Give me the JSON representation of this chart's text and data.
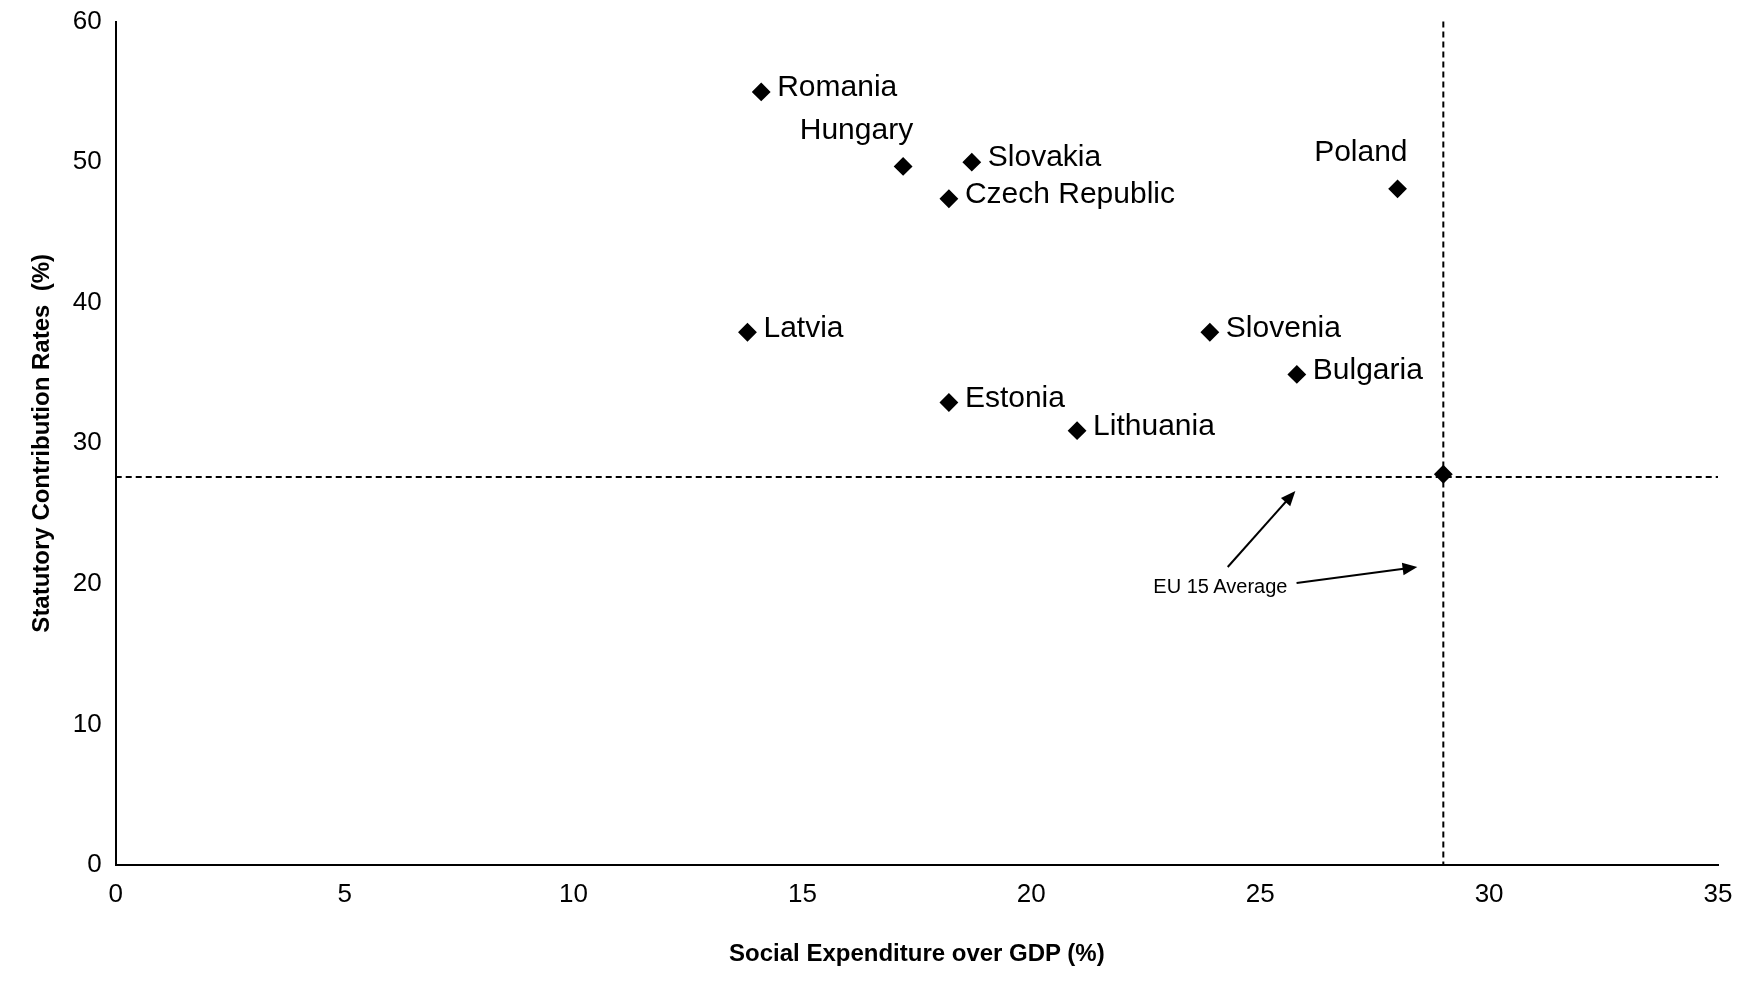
{
  "chart_data": {
    "type": "scatter",
    "xlabel": "Social Expenditure over GDP (%)",
    "ylabel": "Statutory Contribution Rates  (%)",
    "x": [
      14.1,
      17.2,
      18.7,
      18.2,
      28.0,
      13.8,
      23.9,
      25.8,
      18.2,
      21.0,
      29.0
    ],
    "values": [
      55,
      49.7,
      50,
      47.4,
      48.1,
      37.9,
      37.9,
      34.9,
      32.9,
      30.9,
      27.8
    ],
    "color": "#000000",
    "marker": "diamond",
    "xlim": [
      0,
      35
    ],
    "xticks": [
      0,
      5,
      10,
      15,
      20,
      25,
      30,
      35
    ],
    "ylim": [
      0,
      60
    ],
    "yticks": [
      0,
      10,
      20,
      30,
      40,
      50,
      60
    ],
    "grid": false,
    "legend": false,
    "ref_lines": [
      {
        "axis": "x",
        "value": 29,
        "color": "#000000",
        "line_style": "dashed"
      },
      {
        "axis": "y",
        "value": 27.6,
        "color": "#000000",
        "line_style": "dashed"
      }
    ],
    "annotations": [
      {
        "text": "Romania",
        "x": 14.1,
        "y": 55
      },
      {
        "text": "Hungary",
        "x": 17.2,
        "y": 49.7
      },
      {
        "text": "Slovakia",
        "x": 18.7,
        "y": 50
      },
      {
        "text": "Czech Republic",
        "x": 18.2,
        "y": 47.4
      },
      {
        "text": "Poland",
        "x": 28.0,
        "y": 48.1
      },
      {
        "text": "Latvia",
        "x": 13.8,
        "y": 37.9
      },
      {
        "text": "Slovenia",
        "x": 23.9,
        "y": 37.9
      },
      {
        "text": "Bulgaria",
        "x": 25.8,
        "y": 34.9
      },
      {
        "text": "Estonia",
        "x": 18.2,
        "y": 32.9
      },
      {
        "text": "Lithuania",
        "x": 21.0,
        "y": 30.9
      },
      "EU 15 Average"
    ]
  }
}
